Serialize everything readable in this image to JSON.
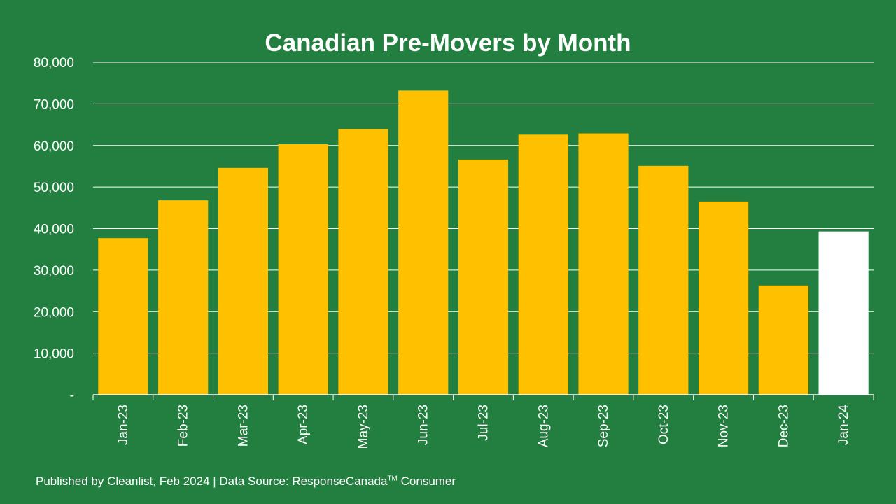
{
  "colors": {
    "background": "#237f3f",
    "bar": "#ffc000",
    "bar_highlight": "#ffffff",
    "gridline": "#ffffff",
    "text": "#ffffff"
  },
  "chart_data": {
    "type": "bar",
    "title": "Canadian Pre-Movers by Month",
    "xlabel": "",
    "ylabel": "",
    "ylim": [
      0,
      80000
    ],
    "yticks": [
      0,
      10000,
      20000,
      30000,
      40000,
      50000,
      60000,
      70000,
      80000
    ],
    "ytick_labels": [
      "-",
      "10,000",
      "20,000",
      "30,000",
      "40,000",
      "50,000",
      "60,000",
      "70,000",
      "80,000"
    ],
    "grid": true,
    "categories": [
      "Jan-23",
      "Feb-23",
      "Mar-23",
      "Apr-23",
      "May-23",
      "Jun-23",
      "Jul-23",
      "Aug-23",
      "Sep-23",
      "Oct-23",
      "Nov-23",
      "Dec-23",
      "Jan-24"
    ],
    "values": [
      37700,
      46800,
      54600,
      60300,
      64000,
      73200,
      56600,
      62600,
      62900,
      55100,
      46500,
      26300,
      39300
    ],
    "highlight_category": "Jan-24"
  },
  "footer": {
    "text": "Published by Cleanlist, Feb 2024 | Data Source: ResponseCanada",
    "trademark": "TM",
    "suffix": " Consumer"
  }
}
